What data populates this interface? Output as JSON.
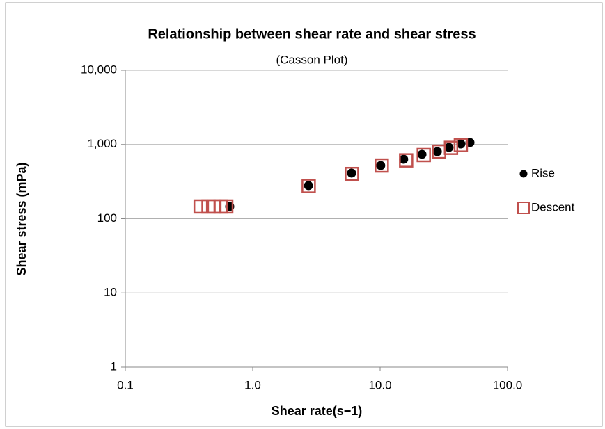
{
  "chart_data": {
    "type": "scatter",
    "title": "Relationship between shear rate and shear stress",
    "subtitle": "(Casson Plot)",
    "xlabel": "Shear rate(s−1)",
    "ylabel": "Shear stress (mPa)",
    "xscale": "log",
    "yscale": "log",
    "xlim": [
      0.1,
      100
    ],
    "ylim": [
      1,
      10000
    ],
    "xticks": [
      0.1,
      {
        "value": 1,
        "label": "1.0"
      },
      {
        "value": 10,
        "label": "10.0"
      },
      {
        "value": 100,
        "label": "100.0"
      }
    ],
    "yticks": [
      1,
      10,
      100,
      {
        "value": 1000,
        "label": "1,000"
      },
      {
        "value": 10000,
        "label": "10,000"
      }
    ],
    "grid": true,
    "legend": "right",
    "series": [
      {
        "name": "Rise",
        "color": "#000000",
        "marker": "circle",
        "x": [
          0.66,
          2.74,
          5.97,
          10.1,
          15.3,
          21.3,
          28.1,
          34.7,
          43,
          50.7
        ],
        "values": [
          146,
          279,
          411,
          521,
          632,
          736,
          802,
          912,
          1016,
          1062
        ]
      },
      {
        "name": "Descent",
        "color": "#c0504d",
        "marker": "square",
        "x": [
          0.39,
          0.45,
          0.5,
          0.56,
          0.62,
          2.75,
          6.0,
          10.3,
          16,
          22,
          29,
          36,
          43
        ],
        "values": [
          146,
          146,
          146,
          146,
          146,
          275,
          400,
          520,
          610,
          720,
          800,
          900,
          980
        ]
      }
    ]
  }
}
